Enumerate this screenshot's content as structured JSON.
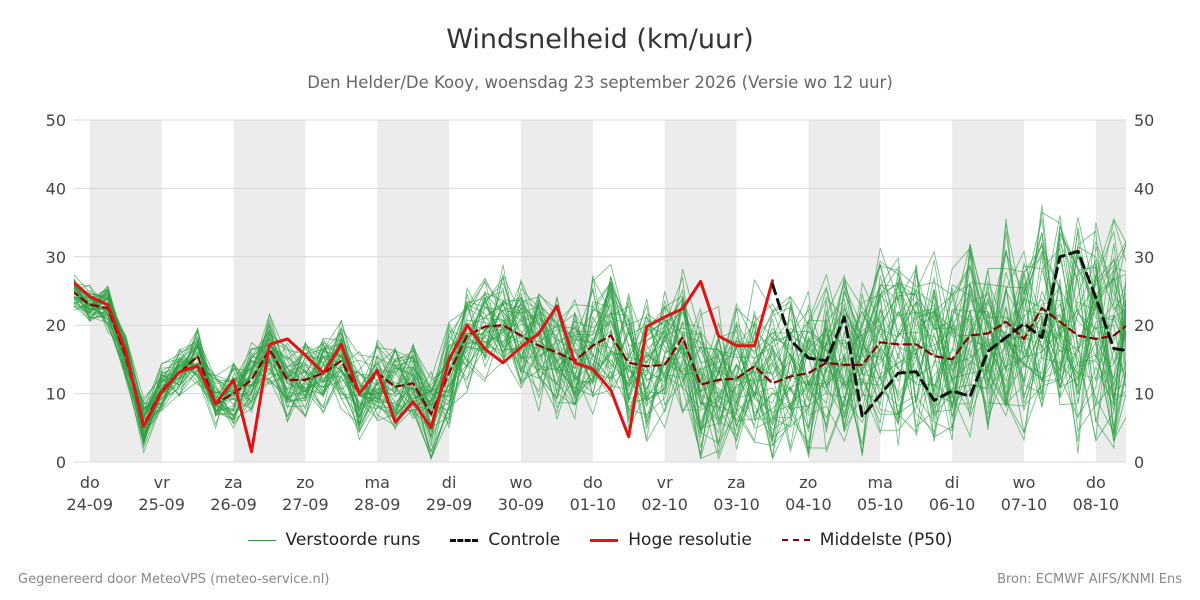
{
  "title": "Windsnelheid (km/uur)",
  "subtitle": "Den Helder/De Kooy, woensdag 23 september 2026 (Versie wo 12 uur)",
  "footer_left": "Gegenereerd door MeteoVPS (meteo-service.nl)",
  "footer_right": "Bron: ECMWF AIFS/KNMI Ens",
  "colors": {
    "ensemble": "#2e9e44",
    "control": "#111111",
    "hires": "#e01414",
    "median": "#8b0000",
    "shade": "#ececec",
    "grid": "#d8d8d8"
  },
  "legend": [
    {
      "label": "Verstoorde runs",
      "series": "ensemble"
    },
    {
      "label": "Controle",
      "series": "control"
    },
    {
      "label": "Hoge resolutie",
      "series": "hires"
    },
    {
      "label": "Middelste (P50)",
      "series": "median"
    }
  ],
  "chart_data": {
    "type": "line",
    "title": "Windsnelheid (km/uur)",
    "subtitle": "Den Helder/De Kooy, woensdag 23 september 2026 (Versie wo 12 uur)",
    "x_unit": "days (offset from 24-09 00:00)",
    "xlim": [
      -0.22,
      14.42
    ],
    "ylim": [
      0,
      50
    ],
    "yticks": [
      0,
      10,
      20,
      30,
      40,
      50
    ],
    "y_axis_both_sides": true,
    "grid": "horizontal",
    "shaded_days": [
      0,
      2,
      4,
      6,
      8,
      10,
      12,
      14
    ],
    "day_labels": [
      {
        "day": "do",
        "date": "24-09"
      },
      {
        "day": "vr",
        "date": "25-09"
      },
      {
        "day": "za",
        "date": "26-09"
      },
      {
        "day": "zo",
        "date": "27-09"
      },
      {
        "day": "ma",
        "date": "28-09"
      },
      {
        "day": "di",
        "date": "29-09"
      },
      {
        "day": "wo",
        "date": "30-09"
      },
      {
        "day": "do",
        "date": "01-10"
      },
      {
        "day": "vr",
        "date": "02-10"
      },
      {
        "day": "za",
        "date": "03-10"
      },
      {
        "day": "zo",
        "date": "04-10"
      },
      {
        "day": "ma",
        "date": "05-10"
      },
      {
        "day": "di",
        "date": "06-10"
      },
      {
        "day": "wo",
        "date": "07-10"
      },
      {
        "day": "do",
        "date": "08-10"
      }
    ],
    "legend_position": "bottom-center",
    "ensemble_members": 50,
    "series": [
      {
        "name": "Hoge resolutie",
        "style": "solid",
        "x": [
          -0.25,
          0.0,
          0.25,
          0.5,
          0.75,
          1.0,
          1.25,
          1.5,
          1.75,
          2.0,
          2.25,
          2.5,
          2.75,
          3.0,
          3.25,
          3.5,
          3.75,
          4.0,
          4.25,
          4.5,
          4.75,
          5.0,
          5.25,
          5.5,
          5.75,
          6.0,
          6.25,
          6.5,
          6.75,
          7.0,
          7.25,
          7.5,
          7.75,
          8.0,
          8.25,
          8.5,
          8.75,
          9.0,
          9.25,
          9.5
        ],
        "y": [
          26.5,
          24.2,
          23.0,
          16.2,
          5.2,
          10.2,
          13.2,
          14.0,
          8.5,
          12.0,
          1.5,
          17.2,
          18.0,
          15.6,
          13.0,
          17.2,
          10.0,
          13.4,
          5.8,
          8.8,
          5.0,
          15.0,
          20.0,
          16.5,
          14.5,
          16.8,
          18.8,
          22.8,
          14.5,
          13.6,
          10.5,
          3.7,
          19.8,
          21.2,
          22.4,
          26.4,
          18.4,
          17.0,
          17.0,
          26.5
        ]
      },
      {
        "name": "Controle",
        "style": "dashed",
        "x": [
          9.5,
          9.75,
          10.0,
          10.25,
          10.5,
          10.75,
          11.0,
          11.25,
          11.5,
          11.75,
          12.0,
          12.25,
          12.5,
          12.75,
          13.0,
          13.25,
          13.5,
          13.75,
          14.0,
          14.25,
          14.5
        ],
        "y": [
          26.0,
          17.8,
          15.2,
          14.8,
          21.2,
          6.6,
          9.8,
          13.0,
          13.2,
          9.0,
          10.4,
          9.6,
          16.2,
          18.2,
          20.2,
          18.2,
          30.0,
          30.8,
          24.0,
          16.6,
          16.2
        ]
      },
      {
        "name": "Middelste (P50)",
        "style": "dashed",
        "x": [
          -0.25,
          0.0,
          0.25,
          0.5,
          0.75,
          1.0,
          1.25,
          1.5,
          1.75,
          2.0,
          2.25,
          2.5,
          2.75,
          3.0,
          3.25,
          3.5,
          3.75,
          4.0,
          4.25,
          4.5,
          4.75,
          5.0,
          5.25,
          5.5,
          5.75,
          6.0,
          6.25,
          6.5,
          6.75,
          7.0,
          7.25,
          7.5,
          7.75,
          8.0,
          8.25,
          8.5,
          8.75,
          9.0,
          9.25,
          9.5,
          9.75,
          10.0,
          10.25,
          10.5,
          10.75,
          11.0,
          11.25,
          11.5,
          11.75,
          12.0,
          12.25,
          12.5,
          12.75,
          13.0,
          13.25,
          13.5,
          13.75,
          14.0,
          14.25,
          14.5
        ],
        "y": [
          25.0,
          23.0,
          22.5,
          15.5,
          5.5,
          10.5,
          13.0,
          15.5,
          8.5,
          10.0,
          12.0,
          16.5,
          12.0,
          12.0,
          13.0,
          14.8,
          10.0,
          13.0,
          11.0,
          11.5,
          7.0,
          13.0,
          18.5,
          19.8,
          20.0,
          18.5,
          17.0,
          16.0,
          14.8,
          17.0,
          18.5,
          14.5,
          14.0,
          14.2,
          18.2,
          11.3,
          12.0,
          12.2,
          14.0,
          11.5,
          12.5,
          13.0,
          14.5,
          14.2,
          14.2,
          17.5,
          17.2,
          17.2,
          15.5,
          15.0,
          18.5,
          18.8,
          20.5,
          18.0,
          22.5,
          20.5,
          18.5,
          18.0,
          18.5,
          20.5
        ]
      }
    ]
  }
}
